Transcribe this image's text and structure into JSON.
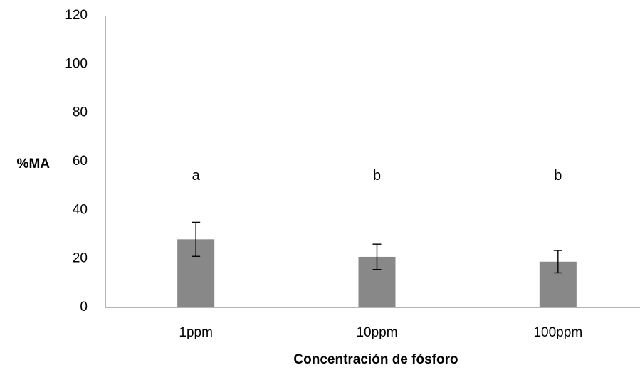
{
  "chart_data": {
    "type": "bar",
    "title": "",
    "xlabel": "Concentración de fósforo",
    "ylabel": "%MA",
    "categories": [
      "1ppm",
      "10ppm",
      "100ppm"
    ],
    "values": [
      28,
      20.8,
      18.8
    ],
    "error": [
      7,
      5.2,
      4.6
    ],
    "significance_letters": [
      "a",
      "b",
      "b"
    ],
    "ylim": [
      0,
      120
    ],
    "yticks": [
      "0",
      "20",
      "40",
      "60",
      "80",
      "100",
      "120"
    ],
    "bar_color": "#888888",
    "grid": false,
    "legend": "none"
  }
}
